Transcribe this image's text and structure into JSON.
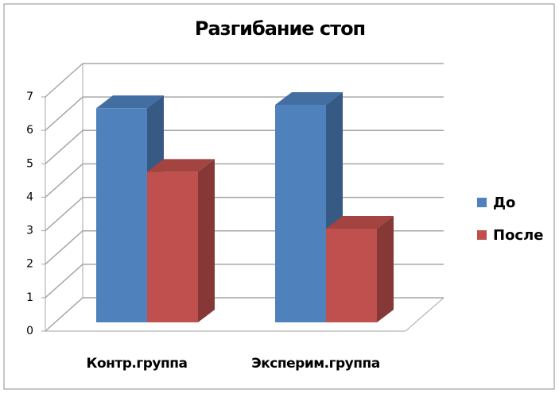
{
  "chart_data": {
    "type": "bar",
    "title": "Разгибание стоп",
    "categories": [
      "Контр.группа",
      "Эксперим.группа"
    ],
    "series": [
      {
        "name": "До",
        "color": "#4f81bd",
        "values": [
          6.4,
          6.5
        ]
      },
      {
        "name": "После",
        "color": "#c0504d",
        "values": [
          4.5,
          2.8
        ]
      }
    ],
    "ylim": [
      0,
      7
    ],
    "yticks": [
      0,
      1,
      2,
      3,
      4,
      5,
      6,
      7
    ],
    "grid": true,
    "legend": "right"
  }
}
